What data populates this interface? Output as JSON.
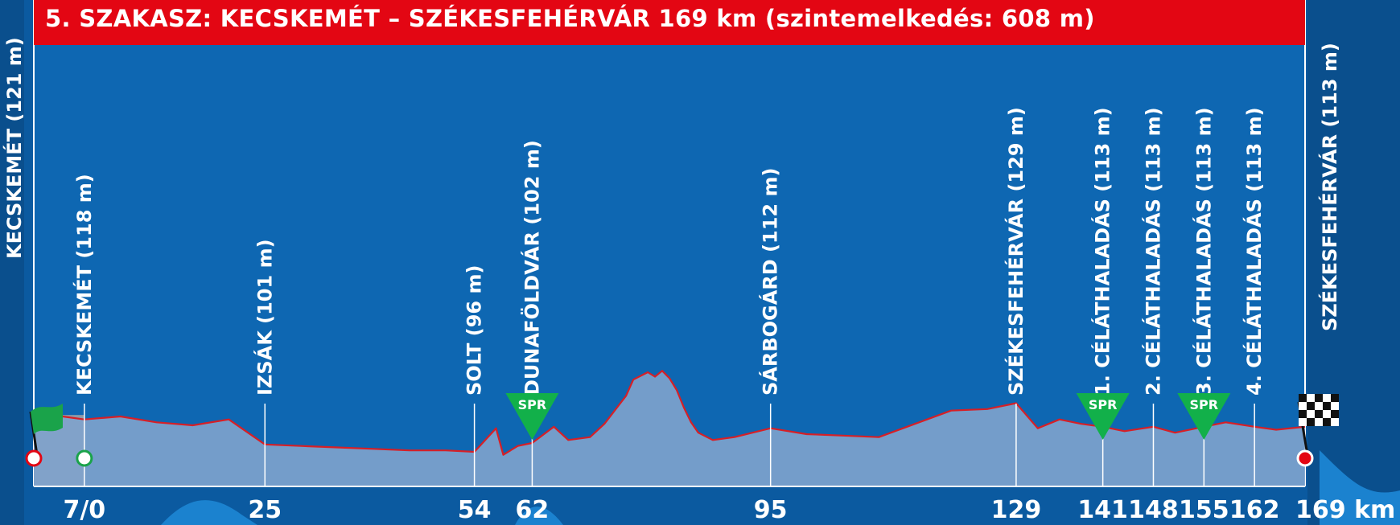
{
  "title": "5. SZAKASZ: KECSKEMÉT – SZÉKESFEHÉRVÁR 169 km (szintemelkedés: 608 m)",
  "colors": {
    "background": "#0b5aa0",
    "panel": "#0e67b2",
    "title_bar": "#e30613",
    "profile_fill": "#7fa3cc",
    "profile_line": "#d61f26",
    "spr_marker": "#12b04a",
    "start_flag": "#1aa34a",
    "neutral_zone": "#8e9aa8"
  },
  "chart_data": {
    "type": "area",
    "title": "5. SZAKASZ: KECSKEMÉT – SZÉKESFEHÉRVÁR 169 km (szintemelkedés: 608 m)",
    "xlabel": "km",
    "ylabel": "",
    "xlim": [
      -7,
      169
    ],
    "ylim": [
      60,
      180
    ],
    "grid": false,
    "legend": "none",
    "x_tick_labels": [
      {
        "label": "7/0",
        "x": 0
      },
      {
        "label": "25",
        "x": 25
      },
      {
        "label": "54",
        "x": 54
      },
      {
        "label": "62",
        "x": 62
      },
      {
        "label": "95",
        "x": 95
      },
      {
        "label": "129",
        "x": 129
      },
      {
        "label": "141",
        "x": 141
      },
      {
        "label": "148",
        "x": 148
      },
      {
        "label": "155",
        "x": 155
      },
      {
        "label": "162",
        "x": 162
      },
      {
        "label": "169 km",
        "x": 169
      }
    ],
    "neutral_zone_km": [
      -7,
      0
    ],
    "start": {
      "x": -7,
      "label": "KECSKEMÉT (121 m)"
    },
    "finish": {
      "x": 169,
      "label": "SZÉKESFEHÉRVÁR (113 m)"
    },
    "waypoints": [
      {
        "x": 0,
        "label": "KECSKEMÉT (118 m)"
      },
      {
        "x": 25,
        "label": "IZSÁK (101 m)"
      },
      {
        "x": 54,
        "label": "SOLT (96 m)"
      },
      {
        "x": 62,
        "label": "DUNAFÖLDVÁR (102 m)"
      },
      {
        "x": 95,
        "label": "SÁRBOGÁRD (112 m)"
      },
      {
        "x": 129,
        "label": "SZÉKESFEHÉRVÁR (129 m)"
      },
      {
        "x": 141,
        "label": "1. CÉLÁTHALADÁS (113 m)"
      },
      {
        "x": 148,
        "label": "2. CÉLÁTHALADÁS (113 m)"
      },
      {
        "x": 155,
        "label": "3. CÉLÁTHALADÁS (113 m)"
      },
      {
        "x": 162,
        "label": "4. CÉLÁTHALADÁS (113 m)"
      }
    ],
    "sprints": [
      {
        "x": 62,
        "label": "SPR"
      },
      {
        "x": 141,
        "label": "SPR"
      },
      {
        "x": 155,
        "label": "SPR"
      }
    ],
    "profile": {
      "x": [
        -7,
        -3,
        0,
        5,
        10,
        15,
        20,
        25,
        30,
        35,
        40,
        45,
        50,
        54,
        57,
        58,
        60,
        62,
        65,
        67,
        70,
        72,
        75,
        76,
        78,
        79,
        80,
        81,
        82,
        83,
        84,
        85,
        87,
        90,
        95,
        100,
        105,
        110,
        115,
        120,
        125,
        129,
        132,
        135,
        138,
        141,
        144,
        148,
        151,
        155,
        158,
        162,
        165,
        169
      ],
      "y": [
        121,
        120,
        118,
        120,
        116,
        114,
        118,
        101,
        100,
        99,
        98,
        97,
        97,
        96,
        112,
        94,
        100,
        102,
        113,
        104,
        106,
        115,
        134,
        145,
        150,
        147,
        151,
        146,
        138,
        126,
        116,
        109,
        104,
        106,
        112,
        108,
        107,
        106,
        115,
        124,
        125,
        129,
        112,
        118,
        115,
        113,
        110,
        113,
        109,
        113,
        116,
        113,
        111,
        113
      ]
    }
  }
}
